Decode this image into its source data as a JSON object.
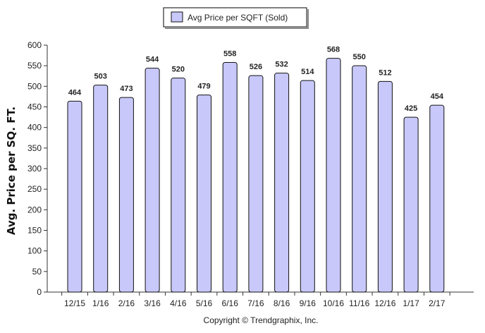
{
  "chart_data": {
    "type": "bar",
    "title": "",
    "xlabel": "",
    "ylabel": "Avg. Price per SQ. FT.",
    "categories": [
      "12/15",
      "1/16",
      "2/16",
      "3/16",
      "4/16",
      "5/16",
      "6/16",
      "7/16",
      "8/16",
      "9/16",
      "10/16",
      "11/16",
      "12/16",
      "1/17",
      "2/17"
    ],
    "series": [
      {
        "name": "Avg Price per SQFT (Sold)",
        "values": [
          464,
          503,
          473,
          544,
          520,
          479,
          558,
          526,
          532,
          514,
          568,
          550,
          512,
          425,
          454
        ]
      }
    ],
    "ylim": [
      0,
      600
    ],
    "yticks": [
      0,
      50,
      100,
      150,
      200,
      250,
      300,
      350,
      400,
      450,
      500,
      550,
      600
    ],
    "data_labels": true,
    "grid": false,
    "legend": "top-center",
    "colors": {
      "bar_fill": "#c8c8fa",
      "bar_stroke": "#111111"
    }
  },
  "footer": {
    "copyright": "Copyright © Trendgraphix, Inc."
  }
}
